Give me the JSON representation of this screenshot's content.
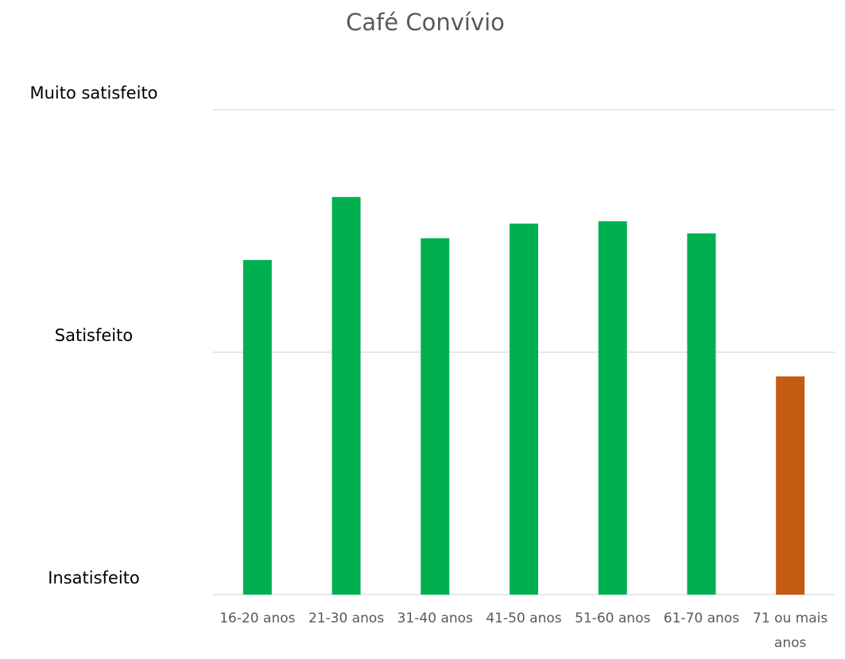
{
  "chart_data": {
    "type": "bar",
    "title": "Café Convívio",
    "xlabel": "",
    "ylabel": "",
    "categories": [
      "16-20 anos",
      "21-30 anos",
      "31-40 anos",
      "41-50 anos",
      "51-60 anos",
      "61-70 anos",
      "71 ou mais anos"
    ],
    "values": [
      1.38,
      1.64,
      1.47,
      1.53,
      1.54,
      1.49,
      0.9
    ],
    "bar_colors": [
      "#00b050",
      "#00b050",
      "#00b050",
      "#00b050",
      "#00b050",
      "#00b050",
      "#c55a11"
    ],
    "ylim": [
      0,
      2
    ],
    "yticks": [
      {
        "value": 0,
        "label": "Insatisfeito"
      },
      {
        "value": 1,
        "label": "Satisfeito"
      },
      {
        "value": 2,
        "label": "Muito satisfeito"
      }
    ],
    "grid": true,
    "legend": "none"
  }
}
